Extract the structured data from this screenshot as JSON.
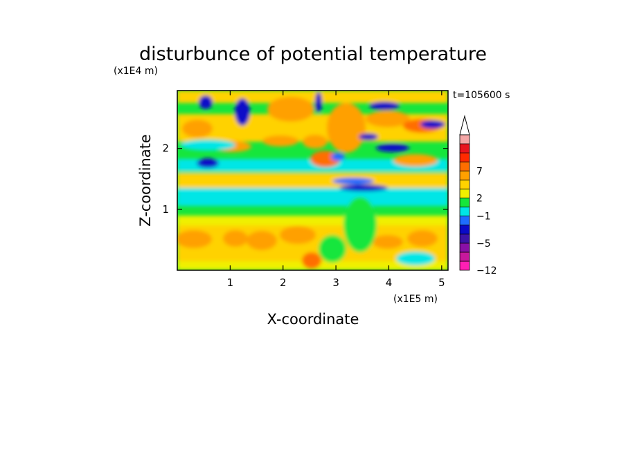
{
  "chart_data": {
    "type": "heatmap",
    "title": "disturbunce of potential temperature",
    "xlabel": "X-coordinate",
    "ylabel": "Z-coordinate",
    "x_unit": "(x1E5 m)",
    "y_unit": "(x1E4 m)",
    "time_label": "t=105600 s",
    "xlim": [
      0,
      5.12
    ],
    "ylim": [
      0,
      2.95
    ],
    "x_ticks": [
      "1",
      "2",
      "3",
      "4",
      "5"
    ],
    "y_ticks": [
      "1",
      "2"
    ],
    "colorbar": {
      "tick_labels": [
        "7",
        "2",
        "-1",
        "-5",
        "-12"
      ],
      "colors": [
        "#ff1fb4",
        "#c8189c",
        "#8a10a6",
        "#3c14a8",
        "#0a0ac8",
        "#1e6cff",
        "#00e6e6",
        "#16e63c",
        "#f0f000",
        "#ffd200",
        "#ffa000",
        "#ff6e00",
        "#ff2a00",
        "#e8141e",
        "#f4a6a6"
      ],
      "extend": "max"
    }
  }
}
